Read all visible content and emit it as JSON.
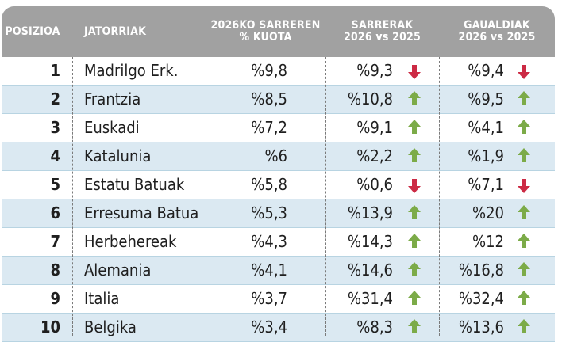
{
  "headers": {
    "position": "POSIZIOA",
    "origin": "JATORRIAK",
    "quota": [
      "2026KO SARREREN",
      "% KUOTA"
    ],
    "entries": [
      "SARRERAK",
      "2026 vs 2025"
    ],
    "overnights": [
      "GAUALDIAK",
      "2026 vs 2025"
    ]
  },
  "colors": {
    "up_arrow": "#7cab48",
    "down_arrow": "#cc2a44",
    "header_bg": "#a1a1a1",
    "row_shade": "#dbe9f2"
  },
  "rows": [
    {
      "pos": "1",
      "origin": "Madrilgo Erk.",
      "quota": "%9,8",
      "entries": "%9,3",
      "entries_trend": "down",
      "overnights": "%9,4",
      "overnights_trend": "down"
    },
    {
      "pos": "2",
      "origin": "Frantzia",
      "quota": "%8,5",
      "entries": "%10,8",
      "entries_trend": "up",
      "overnights": "%9,5",
      "overnights_trend": "up"
    },
    {
      "pos": "3",
      "origin": "Euskadi",
      "quota": "%7,2",
      "entries": "%9,1",
      "entries_trend": "up",
      "overnights": "%4,1",
      "overnights_trend": "up"
    },
    {
      "pos": "4",
      "origin": "Katalunia",
      "quota": "%6",
      "entries": "%2,2",
      "entries_trend": "up",
      "overnights": "%1,9",
      "overnights_trend": "up"
    },
    {
      "pos": "5",
      "origin": "Estatu Batuak",
      "quota": "%5,8",
      "entries": "%0,6",
      "entries_trend": "down",
      "overnights": "%7,1",
      "overnights_trend": "down"
    },
    {
      "pos": "6",
      "origin": "Erresuma Batua",
      "quota": "%5,3",
      "entries": "%13,9",
      "entries_trend": "up",
      "overnights": "%20",
      "overnights_trend": "up"
    },
    {
      "pos": "7",
      "origin": "Herbehereak",
      "quota": "%4,3",
      "entries": "%14,3",
      "entries_trend": "up",
      "overnights": "%12",
      "overnights_trend": "up"
    },
    {
      "pos": "8",
      "origin": "Alemania",
      "quota": "%4,1",
      "entries": "%14,6",
      "entries_trend": "up",
      "overnights": "%16,8",
      "overnights_trend": "up"
    },
    {
      "pos": "9",
      "origin": "Italia",
      "quota": "%3,7",
      "entries": "%31,4",
      "entries_trend": "up",
      "overnights": "%32,4",
      "overnights_trend": "up"
    },
    {
      "pos": "10",
      "origin": "Belgika",
      "quota": "%3,4",
      "entries": "%8,3",
      "entries_trend": "up",
      "overnights": "%13,6",
      "overnights_trend": "up"
    }
  ]
}
